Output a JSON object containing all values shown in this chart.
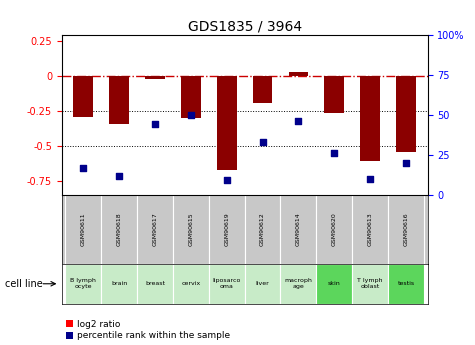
{
  "title": "GDS1835 / 3964",
  "samples": [
    "GSM90611",
    "GSM90618",
    "GSM90617",
    "GSM90615",
    "GSM90619",
    "GSM90612",
    "GSM90614",
    "GSM90620",
    "GSM90613",
    "GSM90616"
  ],
  "cell_lines": [
    "B lymph\nocyte",
    "brain",
    "breast",
    "cervix",
    "liposarco\noma",
    "liver",
    "macroph\nage",
    "skin",
    "T lymph\noblast",
    "testis"
  ],
  "cell_line_colors": [
    "#c8ebc8",
    "#c8ebc8",
    "#c8ebc8",
    "#c8ebc8",
    "#c8ebc8",
    "#c8ebc8",
    "#c8ebc8",
    "#5cd65c",
    "#c8ebc8",
    "#5cd65c"
  ],
  "log2_ratios": [
    -0.29,
    -0.34,
    -0.02,
    -0.3,
    -0.67,
    -0.19,
    0.03,
    -0.26,
    -0.61,
    -0.54
  ],
  "percentile_ranks": [
    17,
    12,
    44,
    50,
    9,
    33,
    46,
    26,
    10,
    20
  ],
  "bar_color": "#8B0000",
  "dot_color": "#00008B",
  "ylim_left": [
    -0.85,
    0.3
  ],
  "ylim_right": [
    0,
    100
  ],
  "yticks_left": [
    0.25,
    0,
    -0.25,
    -0.5,
    -0.75
  ],
  "yticks_right": [
    100,
    75,
    50,
    25,
    0
  ],
  "legend_red": "log2 ratio",
  "legend_blue": "percentile rank within the sample",
  "bar_width": 0.55,
  "figsize": [
    4.75,
    3.45
  ],
  "dpi": 100
}
